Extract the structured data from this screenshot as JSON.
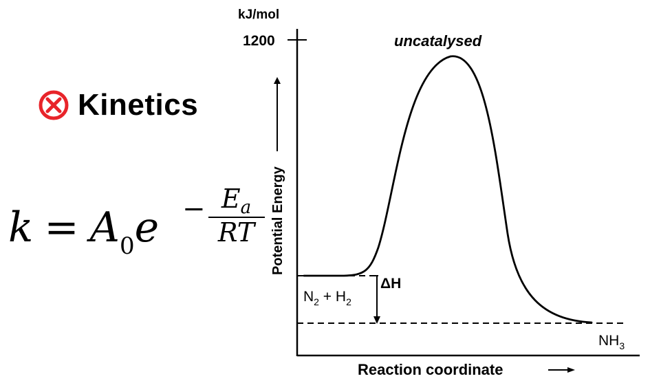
{
  "heading": {
    "title": "Kinetics",
    "icon": "x-circle-icon",
    "icon_color": "#e8242a"
  },
  "formula": {
    "k": "k",
    "equals": "=",
    "A": "A",
    "A_sub": "0",
    "e": "e",
    "minus": "−",
    "numerator": "E",
    "numerator_sub": "a",
    "denominator": "RT"
  },
  "diagram": {
    "y_unit": "kJ/mol",
    "y_tick_label": "1200",
    "y_axis_label": "Potential Energy",
    "x_axis_label": "Reaction coordinate",
    "curve_label": "uncatalysed",
    "reactants": {
      "main": "N",
      "sub1": "2",
      "plus": " + H",
      "sub2": "2"
    },
    "product": {
      "main": "NH",
      "sub": "3"
    },
    "delta_h": "ΔH"
  }
}
